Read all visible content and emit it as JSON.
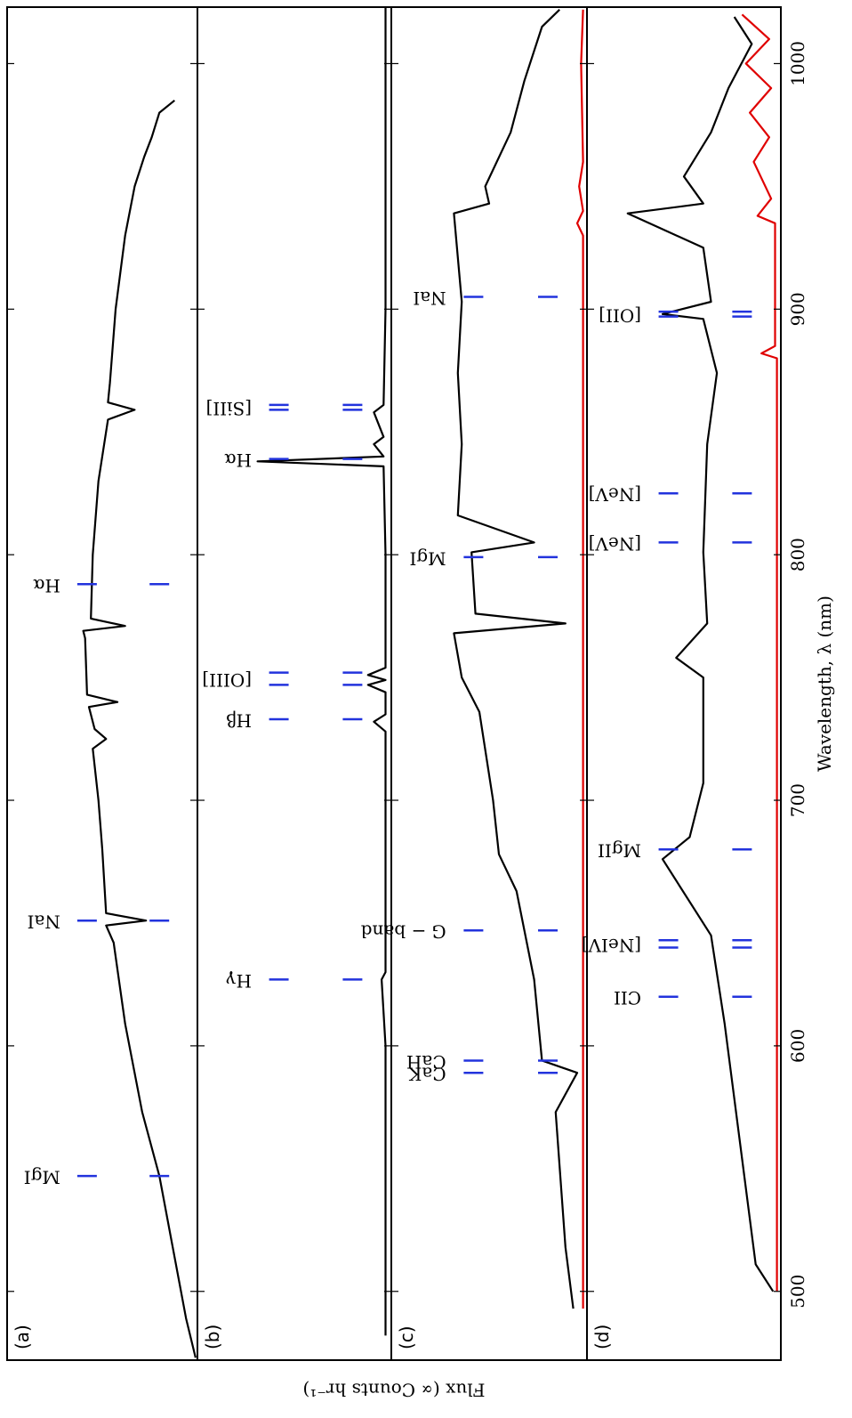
{
  "chart_data": [
    {
      "type": "line",
      "panel_label": "(a)",
      "ylabel": "Flux (∝ Counts hr⁻¹)",
      "xlim": [
        472,
        1023
      ],
      "ylim": [
        0,
        1
      ],
      "series": [
        {
          "color": "#000000",
          "x": [
            473,
            489,
            518,
            547,
            573,
            609,
            642,
            649,
            651,
            654,
            680,
            700,
            721,
            725,
            729,
            738,
            740,
            743,
            766,
            769,
            771,
            774,
            800,
            830,
            855,
            859,
            862,
            870,
            900,
            930,
            950,
            962,
            970,
            980,
            985
          ],
          "values": [
            0.01,
            0.06,
            0.13,
            0.2,
            0.29,
            0.38,
            0.44,
            0.48,
            0.27,
            0.48,
            0.5,
            0.52,
            0.55,
            0.48,
            0.54,
            0.57,
            0.42,
            0.58,
            0.59,
            0.6,
            0.38,
            0.56,
            0.55,
            0.52,
            0.47,
            0.33,
            0.47,
            0.46,
            0.43,
            0.38,
            0.33,
            0.28,
            0.24,
            0.2,
            0.12
          ]
        }
      ],
      "lines": [
        {
          "label": "MgI",
          "x": [
            547
          ]
        },
        {
          "label": "NaI",
          "x": [
            651
          ]
        },
        {
          "label": "Hα",
          "x": [
            788
          ]
        }
      ]
    },
    {
      "type": "line",
      "panel_label": "(b)",
      "xlim": [
        472,
        1023
      ],
      "ylim": [
        0,
        1
      ],
      "series": [
        {
          "color": "#000000",
          "x": [
            482,
            600,
            627,
            630,
            728,
            732,
            735,
            744,
            747,
            749,
            751,
            754,
            800,
            836,
            838,
            840,
            845,
            848,
            858,
            861,
            900,
            1000,
            1023
          ],
          "values": [
            0.03,
            0.03,
            0.05,
            0.03,
            0.03,
            0.09,
            0.03,
            0.03,
            0.12,
            0.03,
            0.12,
            0.03,
            0.03,
            0.04,
            0.69,
            0.04,
            0.09,
            0.04,
            0.09,
            0.04,
            0.03,
            0.03,
            0.03
          ]
        }
      ],
      "lines": [
        {
          "label": "Hγ",
          "x": [
            627
          ]
        },
        {
          "label": "Hβ",
          "x": [
            733
          ]
        },
        {
          "label": "[OIII]",
          "x": [
            747,
            752
          ]
        },
        {
          "label": "Hα",
          "x": [
            839
          ]
        },
        {
          "label": "[SiII]",
          "x": [
            859,
            861
          ]
        }
      ]
    },
    {
      "type": "line",
      "panel_label": "(c)",
      "xlim": [
        472,
        1023
      ],
      "ylim": [
        0,
        1
      ],
      "series": [
        {
          "color": "#000000",
          "x": [
            493,
            518,
            573,
            589,
            594,
            627,
            663,
            678,
            700,
            736,
            750,
            768,
            772,
            776,
            801,
            805,
            816,
            845,
            874,
            903,
            939,
            943,
            950,
            972,
            993,
            1015,
            1022
          ],
          "values": [
            0.07,
            0.11,
            0.16,
            0.05,
            0.23,
            0.27,
            0.36,
            0.45,
            0.48,
            0.55,
            0.64,
            0.68,
            0.11,
            0.57,
            0.59,
            0.27,
            0.66,
            0.64,
            0.66,
            0.64,
            0.68,
            0.5,
            0.52,
            0.39,
            0.32,
            0.23,
            0.14
          ]
        },
        {
          "color": "#e00000",
          "x": [
            493,
            600,
            800,
            930,
            935,
            940,
            950,
            960,
            1000,
            1022
          ],
          "values": [
            0.02,
            0.02,
            0.02,
            0.02,
            0.05,
            0.02,
            0.04,
            0.02,
            0.03,
            0.02
          ]
        }
      ],
      "lines": [
        {
          "label": "CaK",
          "x": [
            589
          ]
        },
        {
          "label": "CaH",
          "x": [
            594
          ]
        },
        {
          "label": "G − band",
          "x": [
            647
          ]
        },
        {
          "label": "MgI",
          "x": [
            799
          ]
        },
        {
          "label": "NaI",
          "x": [
            905
          ]
        }
      ]
    },
    {
      "type": "line",
      "panel_label": "(d)",
      "xlabel": "Wavelength, λ (nm)",
      "xlim": [
        472,
        1023
      ],
      "ylim": [
        0,
        1
      ],
      "xticks": [
        500,
        600,
        700,
        800,
        900,
        1000
      ],
      "series": [
        {
          "color": "#000000",
          "x": [
            500,
            511,
            554,
            609,
            645,
            676,
            685,
            707,
            750,
            758,
            772,
            801,
            845,
            874,
            896,
            898,
            903,
            925,
            939,
            943,
            954,
            972,
            990,
            1008,
            1019
          ],
          "values": [
            0.04,
            0.13,
            0.2,
            0.29,
            0.36,
            0.61,
            0.47,
            0.4,
            0.4,
            0.54,
            0.38,
            0.4,
            0.38,
            0.33,
            0.4,
            0.61,
            0.36,
            0.4,
            0.79,
            0.4,
            0.5,
            0.36,
            0.27,
            0.15,
            0.24
          ]
        },
        {
          "color": "#e00000",
          "x": [
            500,
            600,
            880,
            882,
            885,
            935,
            938,
            945,
            960,
            970,
            980,
            990,
            1000,
            1010,
            1020
          ],
          "values": [
            0.02,
            0.02,
            0.02,
            0.1,
            0.03,
            0.03,
            0.12,
            0.05,
            0.14,
            0.06,
            0.16,
            0.05,
            0.18,
            0.06,
            0.2
          ]
        }
      ],
      "lines": [
        {
          "label": "CII",
          "x": [
            620
          ]
        },
        {
          "label": "[NeIV]",
          "x": [
            640,
            643
          ]
        },
        {
          "label": "MgII",
          "x": [
            680
          ]
        },
        {
          "label": "[NeV]",
          "x": [
            805
          ]
        },
        {
          "label": "[NeV]",
          "x": [
            825
          ]
        },
        {
          "label": "[OII]",
          "x": [
            897,
            899
          ]
        }
      ]
    }
  ]
}
